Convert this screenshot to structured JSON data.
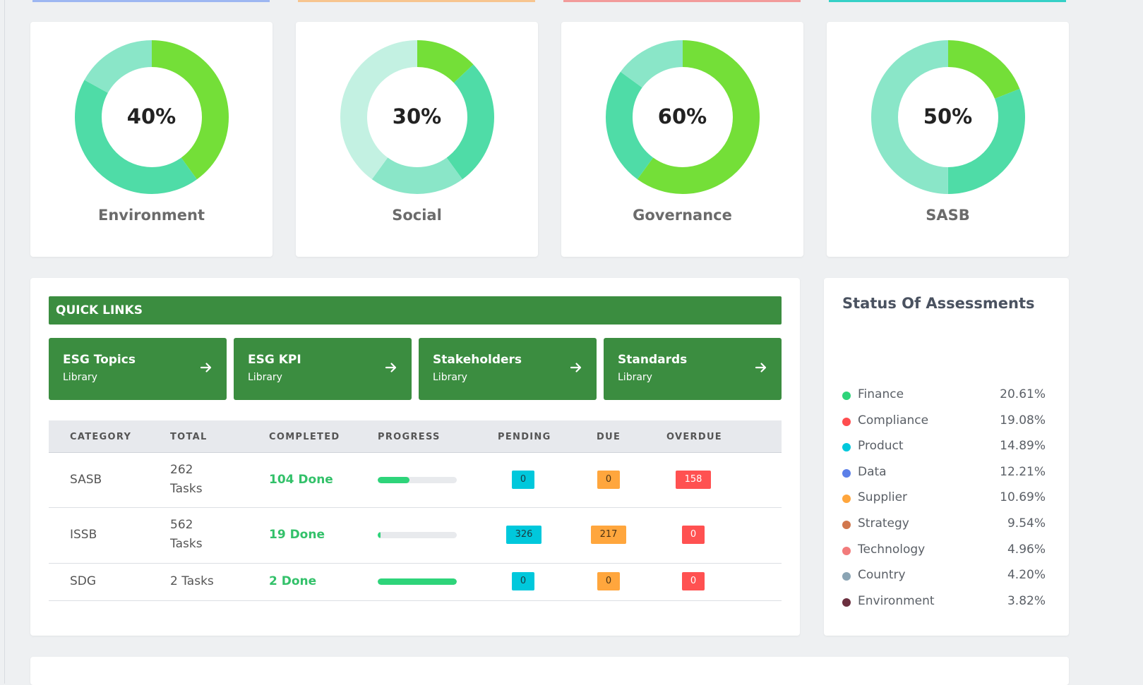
{
  "colors": {
    "strip_blue": "#9db7f2",
    "strip_orange": "#f7c58f",
    "strip_red": "#f29b9b",
    "strip_teal": "#35d0c7",
    "donut_green": "#74df38",
    "donut_teal": "#4fdca7",
    "donut_mint": "#8ae6c8",
    "donut_pale": "#c3f1e2",
    "quick_links_green": "#3b8d40",
    "badge_cyan": "#00c8dc",
    "badge_orange": "#ffa63d",
    "badge_red": "#ff5151"
  },
  "donuts": [
    {
      "value": "40%",
      "label": "Environment",
      "segments": [
        {
          "fraction": 0.4,
          "color": "#74df38"
        },
        {
          "fraction": 0.43,
          "color": "#4fdca7"
        },
        {
          "fraction": 0.17,
          "color": "#8ae6c8"
        }
      ]
    },
    {
      "value": "30%",
      "label": "Social",
      "segments": [
        {
          "fraction": 0.13,
          "color": "#74df38"
        },
        {
          "fraction": 0.27,
          "color": "#4fdca7"
        },
        {
          "fraction": 0.2,
          "color": "#8ae6c8"
        },
        {
          "fraction": 0.4,
          "color": "#c3f1e2"
        }
      ]
    },
    {
      "value": "60%",
      "label": "Governance",
      "segments": [
        {
          "fraction": 0.6,
          "color": "#74df38"
        },
        {
          "fraction": 0.25,
          "color": "#4fdca7"
        },
        {
          "fraction": 0.15,
          "color": "#8ae6c8"
        }
      ]
    },
    {
      "value": "50%",
      "label": "SASB",
      "segments": [
        {
          "fraction": 0.19,
          "color": "#74df38"
        },
        {
          "fraction": 0.31,
          "color": "#4fdca7"
        },
        {
          "fraction": 0.5,
          "color": "#8ae6c8"
        }
      ]
    }
  ],
  "quick_links": {
    "title": "QUICK LINKS",
    "buttons": [
      {
        "title": "ESG Topics",
        "subtitle": "Library"
      },
      {
        "title": "ESG KPI",
        "subtitle": "Library"
      },
      {
        "title": "Stakeholders",
        "subtitle": "Library"
      },
      {
        "title": "Standards",
        "subtitle": "Library"
      }
    ]
  },
  "table": {
    "headers": [
      "CATEGORY",
      "TOTAL",
      "COMPLETED",
      "PROGRESS",
      "PENDING",
      "DUE",
      "OVERDUE"
    ],
    "rows": [
      {
        "category": "SASB",
        "total_line1": "262",
        "total_line2": "Tasks",
        "completed": "104 Done",
        "progress": 0.4,
        "pending": "0",
        "due": "0",
        "overdue": "158"
      },
      {
        "category": "ISSB",
        "total_line1": "562",
        "total_line2": "Tasks",
        "completed": "19 Done",
        "progress": 0.04,
        "pending": "326",
        "due": "217",
        "overdue": "0"
      },
      {
        "category": "SDG",
        "total": "2 Tasks",
        "completed": "2 Done",
        "progress": 1.0,
        "pending": "0",
        "due": "0",
        "overdue": "0"
      }
    ]
  },
  "status": {
    "title": "Status Of Assessments",
    "items": [
      {
        "label": "Finance",
        "value": "20.61%",
        "color": "#2ed47a"
      },
      {
        "label": "Compliance",
        "value": "19.08%",
        "color": "#ff4d4f"
      },
      {
        "label": "Product",
        "value": "14.89%",
        "color": "#00c8dc"
      },
      {
        "label": "Data",
        "value": "12.21%",
        "color": "#5b7fe8"
      },
      {
        "label": "Supplier",
        "value": "10.69%",
        "color": "#ffa63d"
      },
      {
        "label": "Strategy",
        "value": "9.54%",
        "color": "#d1774d"
      },
      {
        "label": "Technology",
        "value": "4.96%",
        "color": "#f27b7b"
      },
      {
        "label": "Country",
        "value": "4.20%",
        "color": "#8aa4b4"
      },
      {
        "label": "Environment",
        "value": "3.82%",
        "color": "#6b2f3f"
      }
    ]
  }
}
